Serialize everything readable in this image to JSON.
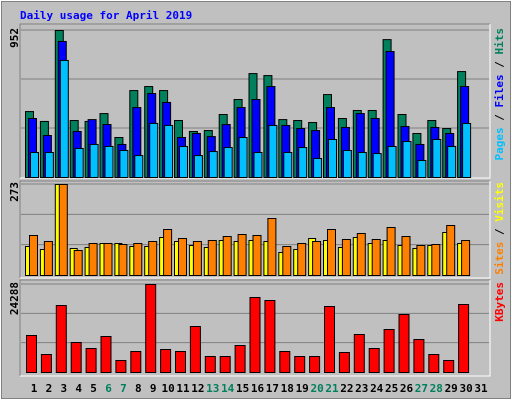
{
  "title": "Daily usage for April 2019",
  "legend_separator": " / ",
  "categories": [
    "1",
    "2",
    "3",
    "4",
    "5",
    "6",
    "7",
    "8",
    "9",
    "10",
    "11",
    "12",
    "13",
    "14",
    "15",
    "16",
    "17",
    "18",
    "19",
    "20",
    "21",
    "22",
    "23",
    "24",
    "25",
    "26",
    "27",
    "28",
    "29",
    "30",
    "31"
  ],
  "category_colors": [
    "#000000",
    "#000000",
    "#000000",
    "#000000",
    "#000000",
    "#00805c",
    "#00805c",
    "#000000",
    "#000000",
    "#000000",
    "#000000",
    "#000000",
    "#00805c",
    "#00805c",
    "#000000",
    "#000000",
    "#000000",
    "#000000",
    "#000000",
    "#00805c",
    "#00805c",
    "#000000",
    "#000000",
    "#000000",
    "#000000",
    "#000000",
    "#00805c",
    "#00805c",
    "#000000",
    "#000000",
    "#000000"
  ],
  "chart_data": [
    {
      "type": "bar",
      "ylim": [
        0,
        952
      ],
      "yticks": [
        952
      ],
      "grid": true,
      "series": [
        {
          "name": "Hits",
          "color": "#00805c",
          "values": [
            427,
            363,
            952,
            369,
            363,
            414,
            259,
            563,
            589,
            563,
            369,
            298,
            304,
            408,
            505,
            673,
            660,
            375,
            369,
            356,
            537,
            382,
            434,
            434,
            893,
            408,
            285,
            369,
            317,
            686,
            null
          ]
        },
        {
          "name": "Files",
          "color": "#0000ff",
          "values": [
            382,
            272,
            881,
            298,
            375,
            343,
            214,
            453,
            544,
            486,
            259,
            285,
            265,
            343,
            453,
            505,
            589,
            337,
            317,
            304,
            453,
            324,
            414,
            382,
            816,
            330,
            214,
            324,
            285,
            589,
            null
          ]
        },
        {
          "name": "Pages",
          "color": "#00c0ff",
          "values": [
            162,
            162,
            758,
            188,
            214,
            201,
            175,
            142,
            350,
            337,
            201,
            142,
            168,
            194,
            259,
            162,
            337,
            162,
            194,
            123,
            246,
            175,
            162,
            155,
            201,
            233,
            110,
            246,
            201,
            350,
            null
          ]
        }
      ]
    },
    {
      "type": "bar",
      "ylim": [
        0,
        273
      ],
      "yticks": [
        273
      ],
      "grid": true,
      "series": [
        {
          "name": "Visits",
          "color": "#ffff00",
          "values": [
            87,
            78,
            273,
            81,
            84,
            96,
            96,
            87,
            87,
            114,
            102,
            90,
            84,
            105,
            102,
            105,
            102,
            69,
            78,
            111,
            105,
            84,
            114,
            96,
            105,
            90,
            81,
            90,
            129,
            96,
            null
          ]
        },
        {
          "name": "Sites",
          "color": "#ff8000",
          "values": [
            120,
            102,
            273,
            75,
            96,
            96,
            93,
            96,
            102,
            138,
            111,
            102,
            105,
            117,
            123,
            120,
            171,
            87,
            96,
            102,
            138,
            108,
            126,
            108,
            144,
            117,
            90,
            93,
            150,
            105,
            null
          ]
        }
      ]
    },
    {
      "type": "bar",
      "ylim": [
        0,
        24288
      ],
      "yticks": [
        24288
      ],
      "grid": true,
      "series": [
        {
          "name": "KBytes",
          "color": "#ff0000",
          "values": [
            10212,
            4968,
            18492,
            8280,
            6624,
            9936,
            3312,
            5796,
            24288,
            6348,
            5796,
            12696,
            4416,
            4416,
            7452,
            20700,
            19872,
            5796,
            4416,
            4416,
            18216,
            5520,
            10488,
            6624,
            11868,
            16008,
            9108,
            4968,
            3312,
            18768,
            null
          ]
        }
      ]
    }
  ]
}
